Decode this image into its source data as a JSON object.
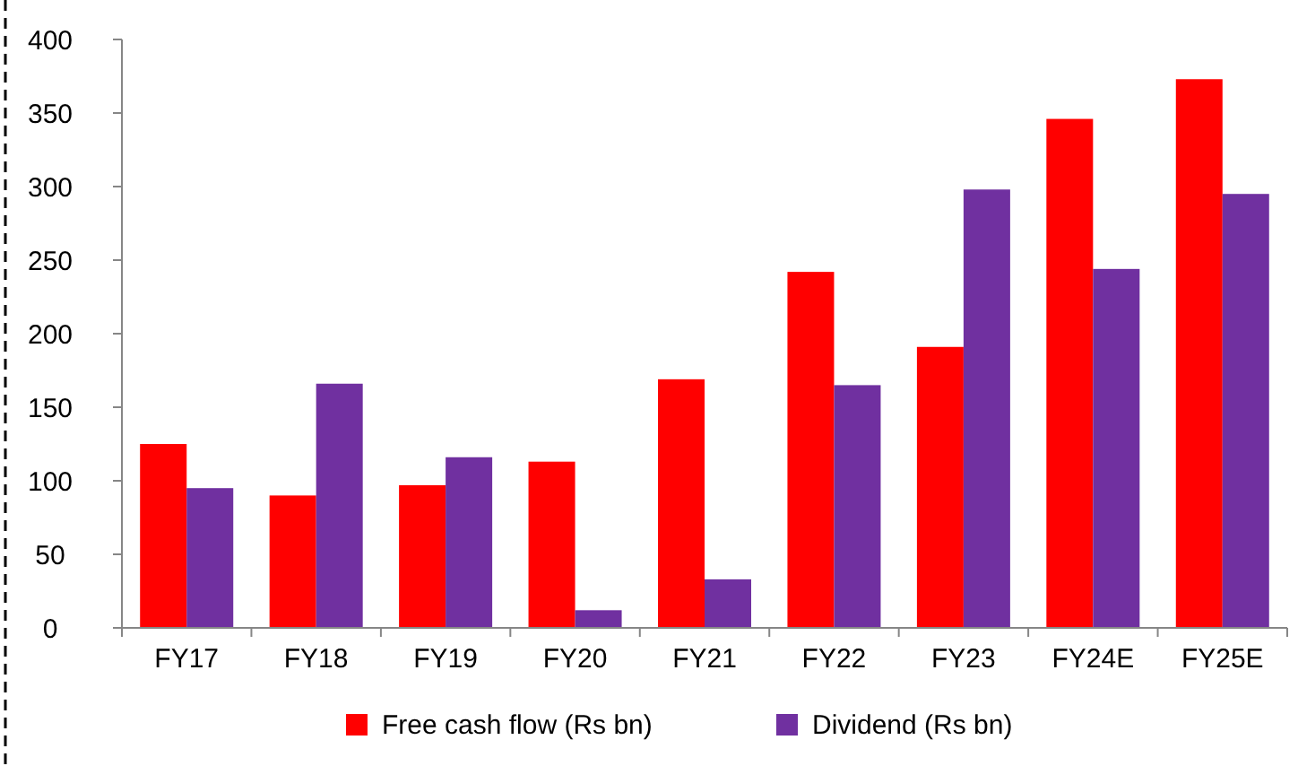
{
  "chart_data": {
    "type": "bar",
    "categories": [
      "FY17",
      "FY18",
      "FY19",
      "FY20",
      "FY21",
      "FY22",
      "FY23",
      "FY24E",
      "FY25E"
    ],
    "series": [
      {
        "name": "Free cash flow (Rs bn)",
        "color": "#ff0000",
        "values": [
          125,
          90,
          97,
          113,
          169,
          242,
          191,
          346,
          373
        ]
      },
      {
        "name": "Dividend (Rs bn)",
        "color": "#7030a0",
        "values": [
          95,
          166,
          116,
          12,
          33,
          165,
          298,
          244,
          295
        ]
      }
    ],
    "ylim": [
      0,
      400
    ],
    "yticks": [
      0,
      50,
      100,
      150,
      200,
      250,
      300,
      350,
      400
    ],
    "grid": false,
    "legend": "bottom"
  }
}
